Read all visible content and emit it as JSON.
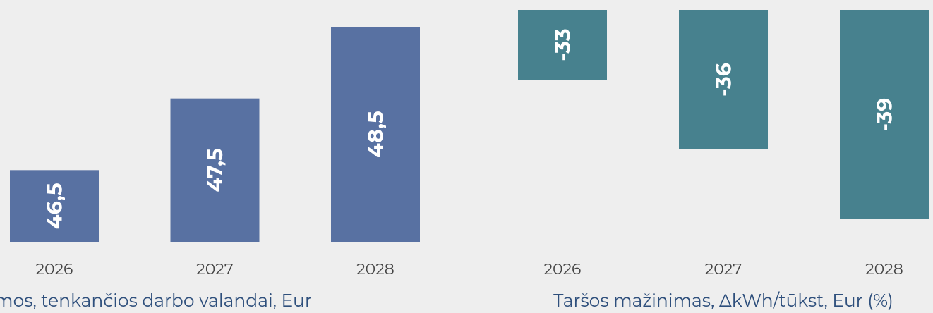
{
  "chart_data": [
    {
      "type": "bar",
      "title": "Pajamos, tenkančios darbo valandai, Eur",
      "categories": [
        "2026",
        "2027",
        "2028"
      ],
      "values": [
        46.5,
        47.5,
        48.5
      ],
      "value_labels": [
        "46,5",
        "47,5",
        "48,5"
      ],
      "color": "#5871a2",
      "ylim": [
        45.5,
        48.5
      ]
    },
    {
      "type": "bar",
      "title": "Taršos mažinimas, ΔkWh/tūkst, Eur (%)",
      "categories": [
        "2026",
        "2027",
        "2028"
      ],
      "values": [
        -33,
        -36,
        -39
      ],
      "color": "#47818e",
      "ylim": [
        -39,
        -30
      ]
    }
  ]
}
